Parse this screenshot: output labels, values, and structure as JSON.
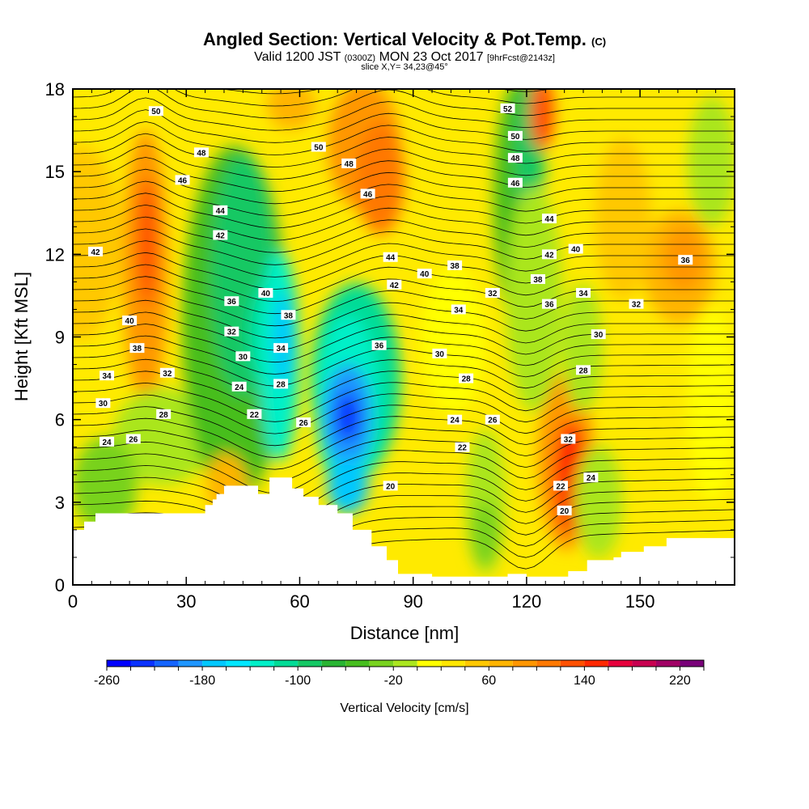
{
  "header": {
    "title": "Angled Section: Vertical Velocity & Pot.Temp.",
    "title_unit": "(C)",
    "valid_prefix": "Valid 1200 JST",
    "valid_utc": "(0300Z)",
    "valid_date": "MON 23 Oct 2017",
    "forecast": "[9hrFcst@2143z]",
    "slice": "slice X,Y= 34,23@45°"
  },
  "chart_data": {
    "type": "heatmap",
    "xlabel": "Distance [nm]",
    "ylabel": "Height [Kft MSL]",
    "xlim": [
      0,
      175
    ],
    "ylim": [
      0,
      18
    ],
    "xticks": [
      "0",
      "30",
      "60",
      "90",
      "120",
      "150"
    ],
    "yticks": [
      "0",
      "3",
      "6",
      "9",
      "12",
      "15",
      "18"
    ],
    "colorbar": {
      "label": "Vertical Velocity [cm/s]",
      "tick_labels": [
        "-260",
        "-180",
        "-100",
        "-20",
        "60",
        "140",
        "220"
      ],
      "levels": [
        -260,
        -240,
        -220,
        -200,
        -180,
        -160,
        -140,
        -120,
        -100,
        -80,
        -60,
        -40,
        -20,
        0,
        20,
        40,
        60,
        80,
        100,
        120,
        140,
        160,
        180,
        200,
        220,
        240
      ],
      "colors": [
        "#0000ff",
        "#0a32ff",
        "#1464ff",
        "#1e96ff",
        "#00c8ff",
        "#00e6ff",
        "#00f0c8",
        "#00dc96",
        "#14c864",
        "#28b432",
        "#46be1e",
        "#78d21e",
        "#aae61e",
        "#ffff00",
        "#ffe600",
        "#ffc800",
        "#ffb400",
        "#ff9600",
        "#ff7800",
        "#ff5000",
        "#ff2800",
        "#e6003c",
        "#c80050",
        "#a00064",
        "#780078"
      ]
    },
    "vertical_velocity_features": [
      {
        "x": 18,
        "y": 12,
        "value": 120,
        "label": "updraft"
      },
      {
        "x": 40,
        "y": 10,
        "value": -80,
        "label": "downdraft"
      },
      {
        "x": 54,
        "y": 9.5,
        "value": -180,
        "label": "downdraft"
      },
      {
        "x": 73,
        "y": 6.2,
        "value": -260,
        "label": "downdraft core"
      },
      {
        "x": 85,
        "y": 16,
        "value": 100,
        "label": "updraft"
      },
      {
        "x": 120,
        "y": 15,
        "value": -80,
        "label": "downdraft"
      },
      {
        "x": 123,
        "y": 17,
        "value": 120,
        "label": "updraft"
      },
      {
        "x": 130,
        "y": 4,
        "value": 160,
        "label": "updraft core"
      },
      {
        "x": 160,
        "y": 11,
        "value": 60,
        "label": "updraft"
      }
    ],
    "contour_labels": [
      {
        "text": "50",
        "x": 22,
        "y": 17.2
      },
      {
        "text": "48",
        "x": 34,
        "y": 15.7
      },
      {
        "text": "46",
        "x": 29,
        "y": 14.7
      },
      {
        "text": "44",
        "x": 39,
        "y": 13.6
      },
      {
        "text": "42",
        "x": 39,
        "y": 12.7
      },
      {
        "text": "42",
        "x": 6,
        "y": 12.1
      },
      {
        "text": "40",
        "x": 15,
        "y": 9.6
      },
      {
        "text": "38",
        "x": 17,
        "y": 8.6
      },
      {
        "text": "36",
        "x": 42,
        "y": 10.3
      },
      {
        "text": "40",
        "x": 51,
        "y": 10.6
      },
      {
        "text": "38",
        "x": 57,
        "y": 9.8
      },
      {
        "text": "34",
        "x": 55,
        "y": 8.6
      },
      {
        "text": "32",
        "x": 42,
        "y": 9.2
      },
      {
        "text": "30",
        "x": 45,
        "y": 8.3
      },
      {
        "text": "28",
        "x": 55,
        "y": 7.3
      },
      {
        "text": "24",
        "x": 44,
        "y": 7.2
      },
      {
        "text": "22",
        "x": 48,
        "y": 6.2
      },
      {
        "text": "26",
        "x": 61,
        "y": 5.9
      },
      {
        "text": "32",
        "x": 25,
        "y": 7.7
      },
      {
        "text": "34",
        "x": 9,
        "y": 7.6
      },
      {
        "text": "30",
        "x": 8,
        "y": 6.6
      },
      {
        "text": "28",
        "x": 24,
        "y": 6.2
      },
      {
        "text": "26",
        "x": 16,
        "y": 5.3
      },
      {
        "text": "24",
        "x": 9,
        "y": 5.2
      },
      {
        "text": "36",
        "x": 81,
        "y": 8.7
      },
      {
        "text": "50",
        "x": 65,
        "y": 15.9
      },
      {
        "text": "48",
        "x": 73,
        "y": 15.3
      },
      {
        "text": "46",
        "x": 78,
        "y": 14.2
      },
      {
        "text": "44",
        "x": 84,
        "y": 11.9
      },
      {
        "text": "42",
        "x": 85,
        "y": 10.9
      },
      {
        "text": "40",
        "x": 93,
        "y": 11.3
      },
      {
        "text": "38",
        "x": 101,
        "y": 11.6
      },
      {
        "text": "34",
        "x": 102,
        "y": 10.0
      },
      {
        "text": "32",
        "x": 111,
        "y": 10.6
      },
      {
        "text": "30",
        "x": 97,
        "y": 8.4
      },
      {
        "text": "28",
        "x": 104,
        "y": 7.5
      },
      {
        "text": "24",
        "x": 101,
        "y": 6.0
      },
      {
        "text": "26",
        "x": 111,
        "y": 6.0
      },
      {
        "text": "22",
        "x": 103,
        "y": 5.0
      },
      {
        "text": "20",
        "x": 84,
        "y": 3.6
      },
      {
        "text": "52",
        "x": 115,
        "y": 17.3
      },
      {
        "text": "50",
        "x": 117,
        "y": 16.3
      },
      {
        "text": "48",
        "x": 117,
        "y": 15.5
      },
      {
        "text": "46",
        "x": 117,
        "y": 14.6
      },
      {
        "text": "44",
        "x": 126,
        "y": 13.3
      },
      {
        "text": "42",
        "x": 126,
        "y": 12.0
      },
      {
        "text": "40",
        "x": 133,
        "y": 12.2
      },
      {
        "text": "38",
        "x": 123,
        "y": 11.1
      },
      {
        "text": "36",
        "x": 126,
        "y": 10.2
      },
      {
        "text": "34",
        "x": 135,
        "y": 10.6
      },
      {
        "text": "32",
        "x": 149,
        "y": 10.2
      },
      {
        "text": "30",
        "x": 139,
        "y": 9.1
      },
      {
        "text": "36",
        "x": 162,
        "y": 11.8
      },
      {
        "text": "28",
        "x": 135,
        "y": 7.8
      },
      {
        "text": "32",
        "x": 131,
        "y": 5.3
      },
      {
        "text": "22",
        "x": 129,
        "y": 3.6
      },
      {
        "text": "24",
        "x": 137,
        "y": 3.9
      },
      {
        "text": "20",
        "x": 130,
        "y": 2.7
      }
    ],
    "terrain_profile": [
      [
        0,
        2.0
      ],
      [
        3,
        2.0
      ],
      [
        3,
        2.3
      ],
      [
        6,
        2.3
      ],
      [
        6,
        2.6
      ],
      [
        35,
        2.6
      ],
      [
        35,
        2.9
      ],
      [
        37,
        2.9
      ],
      [
        37,
        3.1
      ],
      [
        38,
        3.1
      ],
      [
        38,
        3.3
      ],
      [
        40,
        3.3
      ],
      [
        40,
        3.6
      ],
      [
        49,
        3.6
      ],
      [
        49,
        3.3
      ],
      [
        52,
        3.3
      ],
      [
        52,
        3.9
      ],
      [
        58,
        3.9
      ],
      [
        58,
        3.5
      ],
      [
        61,
        3.5
      ],
      [
        61,
        3.2
      ],
      [
        65,
        3.2
      ],
      [
        65,
        2.9
      ],
      [
        70,
        2.9
      ],
      [
        70,
        2.6
      ],
      [
        74,
        2.6
      ],
      [
        74,
        2.0
      ],
      [
        79,
        2.0
      ],
      [
        79,
        1.4
      ],
      [
        83,
        1.4
      ],
      [
        83,
        0.9
      ],
      [
        86,
        0.9
      ],
      [
        86,
        0.4
      ],
      [
        95,
        0.4
      ],
      [
        95,
        0.3
      ],
      [
        115,
        0.3
      ],
      [
        115,
        0.4
      ],
      [
        120,
        0.4
      ],
      [
        120,
        0.3
      ],
      [
        131,
        0.3
      ],
      [
        131,
        0.5
      ],
      [
        136,
        0.5
      ],
      [
        136,
        0.9
      ],
      [
        143,
        0.9
      ],
      [
        143,
        1.0
      ],
      [
        145,
        1.0
      ],
      [
        145,
        1.2
      ],
      [
        151,
        1.2
      ],
      [
        151,
        1.4
      ],
      [
        157,
        1.4
      ],
      [
        157,
        1.7
      ],
      [
        175,
        1.7
      ]
    ]
  }
}
